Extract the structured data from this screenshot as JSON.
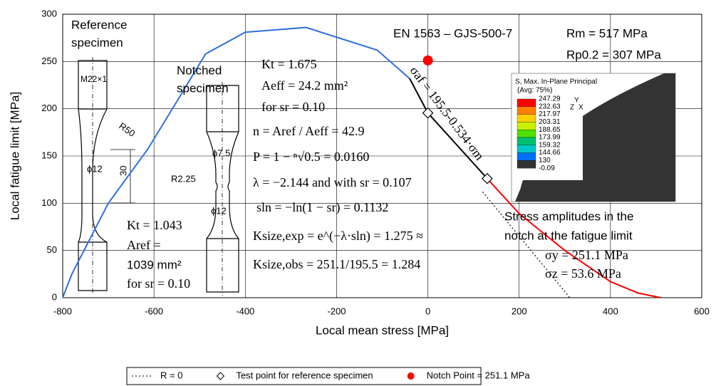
{
  "chart_data": {
    "type": "line",
    "x_label": "Local mean stress [MPa]",
    "y_label": "Local fatigue limit [MPa]",
    "xlim": [
      -800,
      600
    ],
    "xticks": [
      -800,
      -600,
      -400,
      -200,
      0,
      200,
      400,
      600
    ],
    "ylim": [
      0,
      300
    ],
    "yticks": [
      0,
      50,
      100,
      150,
      200,
      250,
      300
    ],
    "grid": true,
    "series": [
      {
        "color": "#2f6fe0",
        "x": [
          -800,
          -780,
          -700,
          -614,
          -547,
          -487,
          -400,
          -267,
          -111,
          -40
        ],
        "values": [
          0,
          25,
          100,
          157,
          210,
          258,
          281,
          286,
          262,
          232
        ]
      },
      {
        "color": "#000000",
        "x": [
          -40,
          0,
          130
        ],
        "values": [
          232,
          195.5,
          126.1
        ]
      },
      {
        "color": "#ff0000",
        "x": [
          130,
          200,
          300,
          400,
          460,
          510
        ],
        "values": [
          126,
          89,
          50,
          17,
          5,
          0
        ]
      },
      {
        "name": "R = 0",
        "color": "#000000",
        "style": "dotted",
        "x": [
          120,
          311
        ],
        "values": [
          112,
          0
        ]
      },
      {
        "name": "Test point for reference specimen",
        "color": "#000000",
        "marker": "diamond",
        "x": [
          0,
          130
        ],
        "values": [
          195.5,
          126.1
        ]
      },
      {
        "name": "Notch Point = 251.1 MPa",
        "color": "#ff0000",
        "marker": "circle",
        "x": [
          0
        ],
        "values": [
          251.1
        ]
      }
    ],
    "annotations": [
      "Reference",
      "specimen",
      "Notched",
      "specimen",
      "EN 1563 – GJS-500-7",
      "Rm = 517 MPa",
      "Rp0.2 = 307 MPa",
      "Kt = 1.675",
      "Aeff = 24.2 mm²",
      "for sr = 0.10",
      "n = Aref / Aeff = 42.9",
      "P = 1 − ⁿ√0.5 = 0.0160",
      "λ = −2.144 and with sr = 0.107",
      "sln = −ln(1 − sr) = 0.1132",
      "Ksize,exp = e^(−λ·sln) = 1.275 ≈",
      "Ksize,obs = 251.1/195.5 = 1.284",
      "Kt = 1.043",
      "Aref =",
      "1039 mm²",
      "for sr = 0.10",
      "Stress amplitudes in the",
      "notch at the fatigue limit",
      "σy = 251.1 MPa",
      "σz = 53.6 MPa",
      "σaf = 195.5-0.534·σm"
    ],
    "specimen_labels": [
      "M22×1",
      "R50",
      "ϕ12",
      "30",
      "ϕ7.5",
      "R2.25",
      "ϕ12"
    ],
    "inset": {
      "title": "S, Max. In-Plane Principal",
      "subtitle": "(Avg: 75%)",
      "levels": [
        247.29,
        232.63,
        217.97,
        203.31,
        188.65,
        173.99,
        159.32,
        144.66,
        130.0,
        -0.09
      ],
      "colors": [
        "#ff0000",
        "#ff8000",
        "#ffd000",
        "#c8f000",
        "#50e000",
        "#00c070",
        "#00c8c8",
        "#0070ff",
        "#333333"
      ],
      "axes": [
        "Y",
        "Z",
        "X"
      ]
    }
  }
}
